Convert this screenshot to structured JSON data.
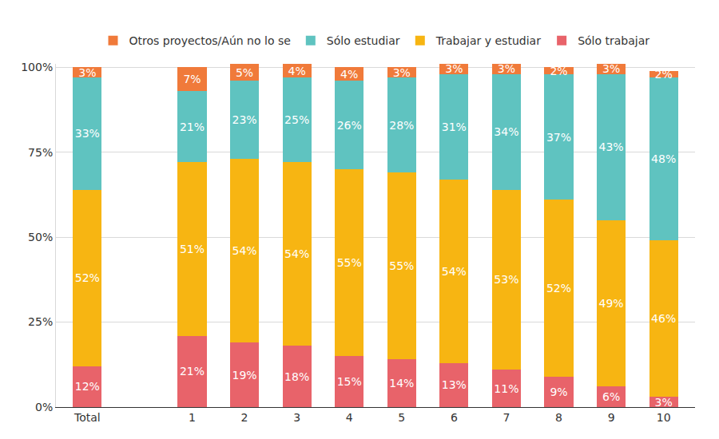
{
  "chart_data": {
    "type": "bar",
    "stacked": true,
    "data_labels": true,
    "grid": true,
    "legend": "top",
    "categories": [
      "Total",
      null,
      "1",
      "2",
      "3",
      "4",
      "5",
      "6",
      "7",
      "8",
      "9",
      "10"
    ],
    "series": [
      {
        "name": "Sólo trabajar",
        "color": "#e8636a",
        "values": [
          12,
          null,
          21,
          19,
          18,
          15,
          14,
          13,
          11,
          9,
          6,
          3
        ],
        "value_labels": [
          "12%",
          null,
          "21%",
          "19%",
          "18%",
          "15%",
          "14%",
          "13%",
          "11%",
          "9%",
          "6%",
          "3%"
        ]
      },
      {
        "name": "Trabajar y estudiar",
        "color": "#f7b512",
        "values": [
          52,
          null,
          51,
          54,
          54,
          55,
          55,
          54,
          53,
          52,
          49,
          46
        ],
        "value_labels": [
          "52%",
          null,
          "51%",
          "54%",
          "54%",
          "55%",
          "55%",
          "54%",
          "53%",
          "52%",
          "49%",
          "46%"
        ]
      },
      {
        "name": "Sólo estudiar",
        "color": "#5fc3c0",
        "values": [
          33,
          null,
          21,
          23,
          25,
          26,
          28,
          31,
          34,
          37,
          43,
          48
        ],
        "value_labels": [
          "33%",
          null,
          "21%",
          "23%",
          "25%",
          "26%",
          "28%",
          "31%",
          "34%",
          "37%",
          "43%",
          "48%"
        ]
      },
      {
        "name": "Otros proyectos/Aún no lo se",
        "color": "#f07a3a",
        "values": [
          3,
          null,
          7,
          5,
          4,
          4,
          3,
          3,
          3,
          2,
          3,
          2
        ],
        "value_labels": [
          "3%",
          null,
          "7%",
          "5%",
          "4%",
          "4%",
          "3%",
          "3%",
          "3%",
          "2%",
          "3%",
          "2%"
        ]
      }
    ],
    "ylim": [
      0,
      101
    ],
    "yticks": [
      {
        "value": 0,
        "label": "0%"
      },
      {
        "value": 25,
        "label": "25%"
      },
      {
        "value": 50,
        "label": "50%"
      },
      {
        "value": 75,
        "label": "75%"
      },
      {
        "value": 100,
        "label": "100%"
      }
    ]
  }
}
